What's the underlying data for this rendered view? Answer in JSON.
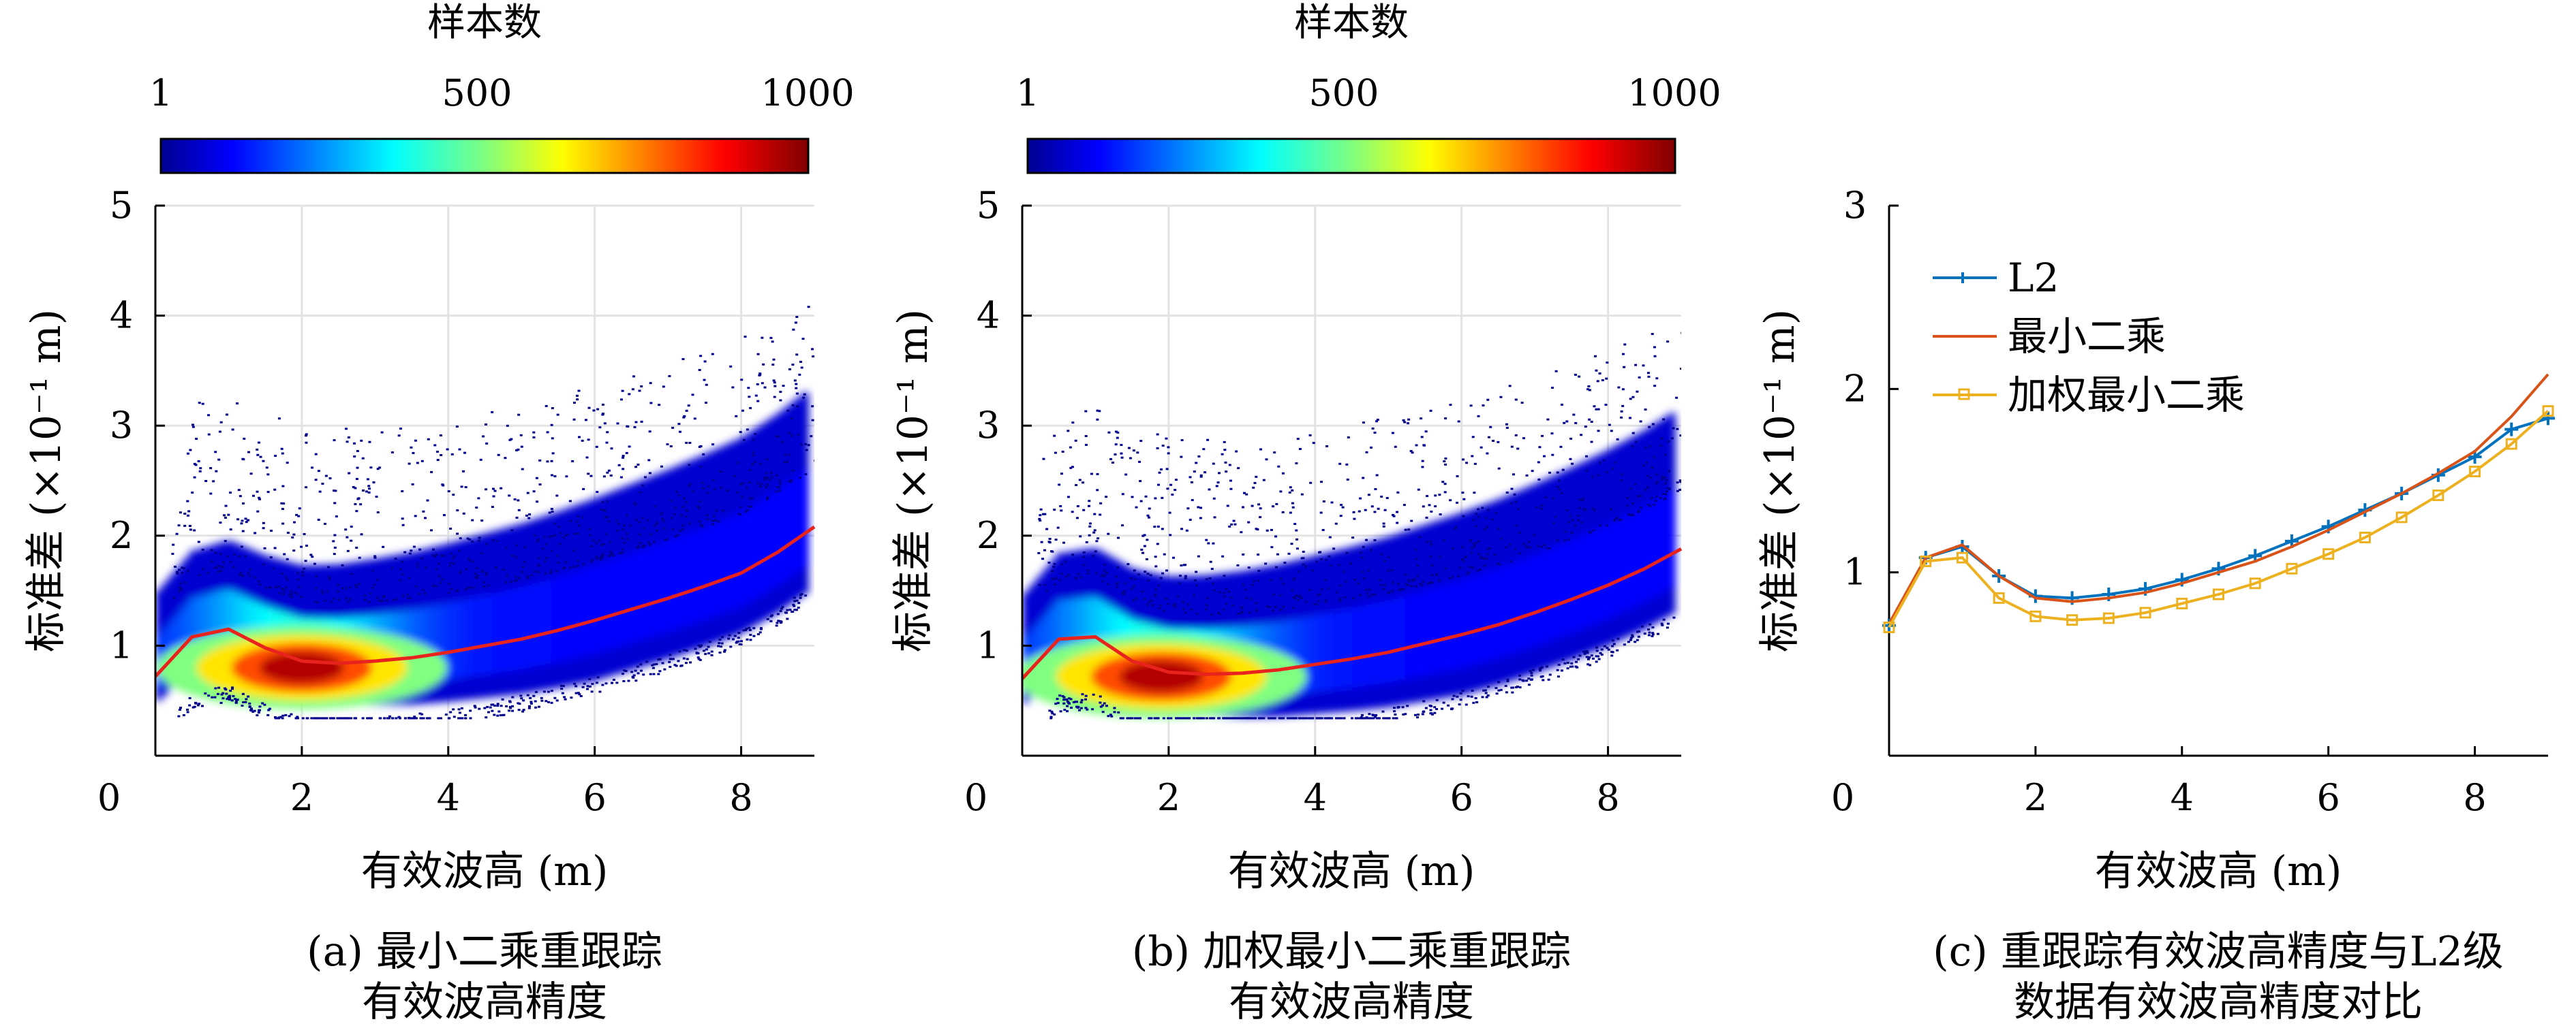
{
  "chart_data": [
    {
      "type": "heatmap",
      "colorbar": {
        "title": "样本数",
        "ticks": [
          "1",
          "500",
          "1000"
        ],
        "range": [
          1,
          1000
        ],
        "colormap": "jet"
      },
      "xlabel": "有效波高 (m)",
      "ylabel": "标准差 (×10⁻¹ m)",
      "xlim": [
        0,
        9
      ],
      "ylim": [
        0,
        5
      ],
      "xticks": [
        "0",
        "2",
        "4",
        "6",
        "8"
      ],
      "yticks": [
        "1",
        "2",
        "3",
        "4",
        "5"
      ],
      "grid": true,
      "caption": [
        "(a) 最小二乘重跟踪",
        "有效波高精度"
      ],
      "fit_line": {
        "color": "#e8231e",
        "x": [
          0,
          0.5,
          1.0,
          1.5,
          2.0,
          2.5,
          3.0,
          3.5,
          4.0,
          4.5,
          5.0,
          5.5,
          6.0,
          6.5,
          7.0,
          7.5,
          8.0,
          8.5,
          9.0
        ],
        "y": [
          0.72,
          1.08,
          1.15,
          0.98,
          0.86,
          0.84,
          0.86,
          0.89,
          0.94,
          1.0,
          1.06,
          1.14,
          1.23,
          1.33,
          1.43,
          1.54,
          1.66,
          1.85,
          2.08
        ]
      },
      "density": {
        "core_x": 2.0,
        "core_y": 0.8
      }
    },
    {
      "type": "heatmap",
      "colorbar": {
        "title": "样本数",
        "ticks": [
          "1",
          "500",
          "1000"
        ],
        "range": [
          1,
          1000
        ],
        "colormap": "jet"
      },
      "xlabel": "有效波高 (m)",
      "ylabel": "标准差 (×10⁻¹ m)",
      "xlim": [
        0,
        9
      ],
      "ylim": [
        0,
        5
      ],
      "xticks": [
        "0",
        "2",
        "4",
        "6",
        "8"
      ],
      "yticks": [
        "1",
        "2",
        "3",
        "4",
        "5"
      ],
      "grid": true,
      "caption": [
        "(b) 加权最小二乘重跟踪",
        "有效波高精度"
      ],
      "fit_line": {
        "color": "#e8231e",
        "x": [
          0,
          0.5,
          1.0,
          1.5,
          2.0,
          2.5,
          3.0,
          3.5,
          4.0,
          4.5,
          5.0,
          5.5,
          6.0,
          6.5,
          7.0,
          7.5,
          8.0,
          8.5,
          9.0
        ],
        "y": [
          0.7,
          1.06,
          1.08,
          0.86,
          0.76,
          0.74,
          0.75,
          0.78,
          0.83,
          0.88,
          0.94,
          1.02,
          1.1,
          1.19,
          1.3,
          1.42,
          1.55,
          1.7,
          1.88
        ]
      },
      "density": {
        "core_x": 1.9,
        "core_y": 0.72
      }
    },
    {
      "type": "line",
      "xlabel": "有效波高 (m)",
      "ylabel": "标准差 (×10⁻¹ m)",
      "xlim": [
        0,
        9
      ],
      "ylim": [
        0,
        3
      ],
      "xticks": [
        "0",
        "2",
        "4",
        "6",
        "8"
      ],
      "yticks": [
        "1",
        "2",
        "3"
      ],
      "grid": false,
      "legend": "top-left",
      "caption": [
        "(c) 重跟踪有效波高精度与L2级",
        "数据有效波高精度对比"
      ],
      "x": [
        0,
        0.5,
        1.0,
        1.5,
        2.0,
        2.5,
        3.0,
        3.5,
        4.0,
        4.5,
        5.0,
        5.5,
        6.0,
        6.5,
        7.0,
        7.5,
        8.0,
        8.5,
        9.0
      ],
      "series": [
        {
          "name": "L2",
          "color": "#0072bd",
          "marker": "plus",
          "values": [
            0.71,
            1.08,
            1.14,
            0.98,
            0.87,
            0.86,
            0.88,
            0.91,
            0.96,
            1.02,
            1.09,
            1.17,
            1.25,
            1.34,
            1.43,
            1.53,
            1.63,
            1.78,
            1.84
          ]
        },
        {
          "name": "最小二乘",
          "color": "#d95319",
          "marker": "none",
          "values": [
            0.72,
            1.08,
            1.15,
            0.98,
            0.86,
            0.84,
            0.86,
            0.89,
            0.94,
            1.0,
            1.06,
            1.14,
            1.23,
            1.33,
            1.43,
            1.54,
            1.66,
            1.85,
            2.08
          ]
        },
        {
          "name": "加权最小二乘",
          "color": "#edb120",
          "marker": "square",
          "values": [
            0.7,
            1.06,
            1.08,
            0.86,
            0.76,
            0.74,
            0.75,
            0.78,
            0.83,
            0.88,
            0.94,
            1.02,
            1.1,
            1.19,
            1.3,
            1.42,
            1.55,
            1.7,
            1.88
          ]
        }
      ]
    }
  ]
}
